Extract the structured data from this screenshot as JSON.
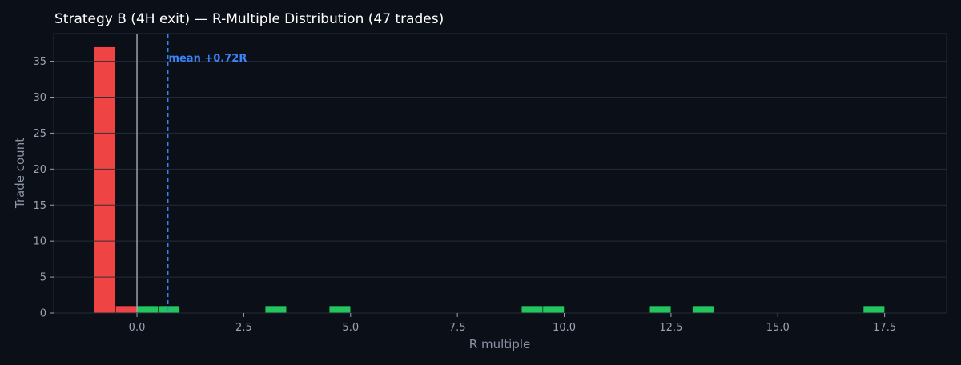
{
  "chart_data": {
    "type": "bar",
    "title": "Strategy B (4H exit) — R-Multiple Distribution (47 trades)",
    "xlabel": "R multiple",
    "ylabel": "Trade count",
    "xlim": [
      -1.95,
      18.95
    ],
    "ylim": [
      0,
      38.85
    ],
    "xticks": [
      0.0,
      2.5,
      5.0,
      7.5,
      10.0,
      12.5,
      15.0,
      17.5
    ],
    "xtick_labels": [
      "0.0",
      "2.5",
      "5.0",
      "7.5",
      "10.0",
      "12.5",
      "15.0",
      "17.5"
    ],
    "yticks": [
      0,
      5,
      10,
      15,
      20,
      25,
      30,
      35
    ],
    "ytick_labels": [
      "0",
      "5",
      "10",
      "15",
      "20",
      "25",
      "30",
      "35"
    ],
    "grid": true,
    "bins": [
      {
        "x0": -1.0,
        "x1": -0.5,
        "count": 37,
        "color": "#ef4444"
      },
      {
        "x0": -0.5,
        "x1": 0.0,
        "count": 1,
        "color": "#ef4444"
      },
      {
        "x0": 0.0,
        "x1": 0.5,
        "count": 1,
        "color": "#22c55e"
      },
      {
        "x0": 0.5,
        "x1": 1.0,
        "count": 1,
        "color": "#22c55e"
      },
      {
        "x0": 3.0,
        "x1": 3.5,
        "count": 1,
        "color": "#22c55e"
      },
      {
        "x0": 4.5,
        "x1": 5.0,
        "count": 1,
        "color": "#22c55e"
      },
      {
        "x0": 9.0,
        "x1": 9.5,
        "count": 1,
        "color": "#22c55e"
      },
      {
        "x0": 9.5,
        "x1": 10.0,
        "count": 1,
        "color": "#22c55e"
      },
      {
        "x0": 12.0,
        "x1": 12.5,
        "count": 1,
        "color": "#22c55e"
      },
      {
        "x0": 13.0,
        "x1": 13.5,
        "count": 1,
        "color": "#22c55e"
      },
      {
        "x0": 17.0,
        "x1": 17.5,
        "count": 1,
        "color": "#22c55e"
      }
    ],
    "reference_lines": [
      {
        "x": 0.0,
        "style": "solid",
        "color": "#9aa3b2"
      },
      {
        "x": 0.72,
        "style": "dashed",
        "color": "#3b82f6",
        "label": "mean +0.72R"
      }
    ],
    "colors": {
      "background": "#0b0f17",
      "grid": "#252b36",
      "loss": "#ef4444",
      "win": "#22c55e",
      "mean": "#3b82f6"
    }
  }
}
